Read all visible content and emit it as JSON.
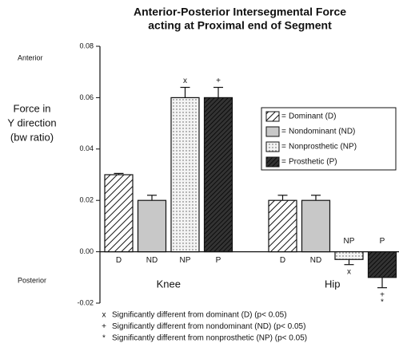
{
  "chart_data": {
    "type": "bar",
    "title": [
      "Anterior-Posterior Intersegmental Force",
      "acting at Proximal end of Segment"
    ],
    "y_label": [
      "Force in",
      "Y direction",
      "(bw ratio)"
    ],
    "y_annotations": {
      "top": "Anterior",
      "bottom": "Posterior"
    },
    "categories": [
      "Knee",
      "Hip"
    ],
    "ylim": [
      -0.02,
      0.08
    ],
    "yticks": [
      -0.02,
      {
        "value": 0,
        "label": "0.00"
      },
      0.02,
      0.04,
      0.06,
      0.08
    ],
    "legend_prefix": "=",
    "legend_position": "right",
    "series": [
      {
        "name": "Dominant (D)",
        "short": "D",
        "color": "#ffffff",
        "pattern": "hatch",
        "values": [
          0.03,
          0.02
        ],
        "errors": [
          0.0005,
          0.002
        ],
        "significance": [
          [],
          []
        ]
      },
      {
        "name": "Nondominant (ND)",
        "short": "ND",
        "color": "#c8c8c8",
        "pattern": "solid",
        "values": [
          0.02,
          0.02
        ],
        "errors": [
          0.002,
          0.002
        ],
        "significance": [
          [],
          []
        ]
      },
      {
        "name": "Nonprosthetic (NP)",
        "short": "NP",
        "color": "#f2f2f2",
        "pattern": "dots",
        "values": [
          0.06,
          -0.003
        ],
        "errors": [
          0.004,
          0.002
        ],
        "significance": [
          [
            "x"
          ],
          [
            "x"
          ]
        ]
      },
      {
        "name": "Prosthetic (P)",
        "short": "P",
        "color": "#333333",
        "pattern": "crosshatch",
        "values": [
          0.06,
          -0.01
        ],
        "errors": [
          0.004,
          0.004
        ],
        "significance": [
          [
            "+"
          ],
          [
            "+",
            "*"
          ]
        ]
      }
    ],
    "notes": [
      {
        "symbol": "x",
        "text": "Significantly different from dominant (D)  (p< 0.05)"
      },
      {
        "symbol": "+",
        "text": "Significantly different from nondominant (ND)  (p< 0.05)"
      },
      {
        "symbol": "*",
        "text": "Significantly different from nonprosthetic (NP) (p< 0.05)"
      }
    ]
  }
}
